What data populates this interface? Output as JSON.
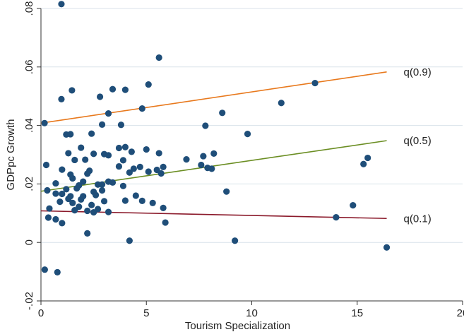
{
  "chart_data": {
    "type": "scatter",
    "title": "",
    "xlabel": "Tourism Specialization",
    "ylabel": "GDPpc Growth",
    "xlim": [
      0,
      20
    ],
    "ylim": [
      -0.02,
      0.08
    ],
    "x_ticks": [
      0,
      5,
      10,
      15,
      20
    ],
    "x_tick_labels": [
      "0",
      "5",
      "10",
      "15",
      "20"
    ],
    "y_ticks": [
      -0.02,
      0,
      0.02,
      0.04,
      0.06,
      0.08
    ],
    "y_tick_labels": [
      "-.02",
      "0",
      ".02",
      ".04",
      ".06",
      ".08"
    ],
    "grid": true,
    "legend": "none",
    "colors": {
      "points": "#1f4e79",
      "q09": "#e8791d",
      "q05": "#6b8e23",
      "q01": "#8b1a2b",
      "grid": "#d9e2ea",
      "axis": "#333333"
    },
    "points": [
      [
        0.97,
        0.0815
      ],
      [
        5.6,
        0.0632
      ],
      [
        13.0,
        0.0545
      ],
      [
        3.4,
        0.0524
      ],
      [
        4.0,
        0.0522
      ],
      [
        1.47,
        0.052
      ],
      [
        5.1,
        0.054
      ],
      [
        2.8,
        0.0498
      ],
      [
        0.97,
        0.049
      ],
      [
        11.4,
        0.0477
      ],
      [
        4.8,
        0.0458
      ],
      [
        3.2,
        0.0441
      ],
      [
        8.6,
        0.0443
      ],
      [
        0.17,
        0.0408
      ],
      [
        2.9,
        0.0403
      ],
      [
        3.8,
        0.0402
      ],
      [
        7.8,
        0.0399
      ],
      [
        1.2,
        0.0369
      ],
      [
        1.4,
        0.037
      ],
      [
        2.4,
        0.0372
      ],
      [
        9.8,
        0.0371
      ],
      [
        4.0,
        0.0326
      ],
      [
        3.7,
        0.0323
      ],
      [
        1.9,
        0.0324
      ],
      [
        2.5,
        0.0303
      ],
      [
        3.0,
        0.0302
      ],
      [
        3.2,
        0.0298
      ],
      [
        4.3,
        0.031
      ],
      [
        5.0,
        0.0318
      ],
      [
        5.6,
        0.0305
      ],
      [
        8.2,
        0.0304
      ],
      [
        1.3,
        0.0305
      ],
      [
        7.7,
        0.0295
      ],
      [
        1.6,
        0.0282
      ],
      [
        3.9,
        0.0281
      ],
      [
        2.1,
        0.0283
      ],
      [
        6.9,
        0.0284
      ],
      [
        15.5,
        0.0289
      ],
      [
        15.3,
        0.0268
      ],
      [
        0.25,
        0.0265
      ],
      [
        3.7,
        0.026
      ],
      [
        4.7,
        0.0258
      ],
      [
        5.8,
        0.0258
      ],
      [
        7.6,
        0.0265
      ],
      [
        8.1,
        0.0252
      ],
      [
        7.9,
        0.0255
      ],
      [
        4.4,
        0.0252
      ],
      [
        1.0,
        0.0249
      ],
      [
        5.5,
        0.0248
      ],
      [
        2.3,
        0.0245
      ],
      [
        4.2,
        0.0239
      ],
      [
        5.1,
        0.0242
      ],
      [
        1.4,
        0.0232
      ],
      [
        2.2,
        0.0235
      ],
      [
        5.7,
        0.0236
      ],
      [
        1.5,
        0.0219
      ],
      [
        2.0,
        0.0208
      ],
      [
        3.4,
        0.0205
      ],
      [
        2.9,
        0.0198
      ],
      [
        0.7,
        0.0202
      ],
      [
        3.2,
        0.0208
      ],
      [
        3.9,
        0.0193
      ],
      [
        1.8,
        0.0195
      ],
      [
        2.7,
        0.0198
      ],
      [
        1.2,
        0.0182
      ],
      [
        0.3,
        0.0178
      ],
      [
        1.7,
        0.0185
      ],
      [
        2.9,
        0.0178
      ],
      [
        8.8,
        0.0174
      ],
      [
        2.5,
        0.0173
      ],
      [
        1.0,
        0.0166
      ],
      [
        2.6,
        0.0162
      ],
      [
        0.7,
        0.0167
      ],
      [
        4.5,
        0.016
      ],
      [
        1.4,
        0.0158
      ],
      [
        2.0,
        0.0158
      ],
      [
        1.3,
        0.0149
      ],
      [
        1.9,
        0.0147
      ],
      [
        4.0,
        0.0143
      ],
      [
        4.8,
        0.0142
      ],
      [
        3.0,
        0.0141
      ],
      [
        0.9,
        0.0139
      ],
      [
        1.5,
        0.0135
      ],
      [
        14.8,
        0.0127
      ],
      [
        5.3,
        0.0135
      ],
      [
        2.4,
        0.0128
      ],
      [
        1.8,
        0.0122
      ],
      [
        5.8,
        0.0118
      ],
      [
        2.7,
        0.0114
      ],
      [
        0.4,
        0.0116
      ],
      [
        1.6,
        0.011
      ],
      [
        2.2,
        0.0108
      ],
      [
        2.5,
        0.0103
      ],
      [
        3.2,
        0.0104
      ],
      [
        0.35,
        0.0085
      ],
      [
        0.7,
        0.0079
      ],
      [
        14.0,
        0.0086
      ],
      [
        1.0,
        0.0066
      ],
      [
        5.9,
        0.0068
      ],
      [
        2.2,
        0.0031
      ],
      [
        4.2,
        0.0006
      ],
      [
        9.2,
        0.0006
      ],
      [
        16.4,
        -0.0017
      ],
      [
        0.18,
        -0.0093
      ],
      [
        0.78,
        -0.0102
      ]
    ],
    "series": [
      {
        "name": "q(0.9)",
        "color_key": "q09",
        "x": [
          0,
          16.4
        ],
        "y": [
          0.0408,
          0.0583
        ]
      },
      {
        "name": "q(0.5)",
        "color_key": "q05",
        "x": [
          0,
          16.4
        ],
        "y": [
          0.0175,
          0.0348
        ]
      },
      {
        "name": "q(0.1)",
        "color_key": "q01",
        "x": [
          0,
          16.4
        ],
        "y": [
          0.0108,
          0.0082
        ]
      }
    ]
  }
}
